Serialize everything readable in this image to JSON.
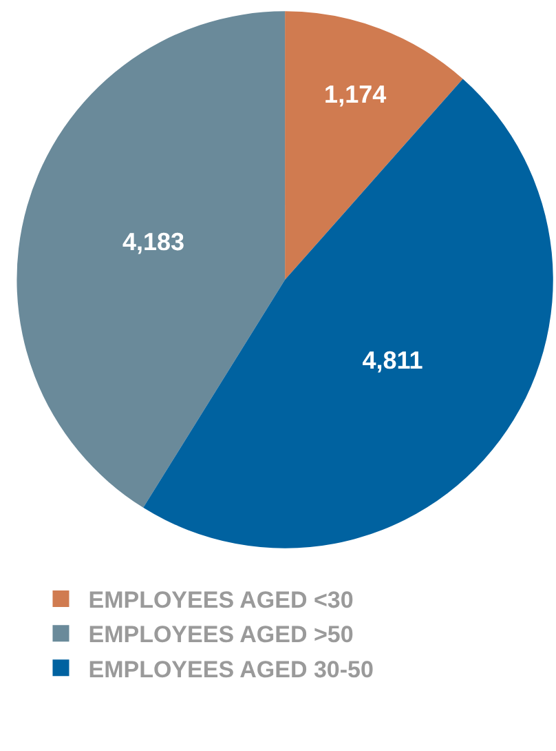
{
  "chart_data": {
    "type": "pie",
    "categories": [
      "EMPLOYEES AGED <30",
      "EMPLOYEES AGED >50",
      "EMPLOYEES AGED 30-50"
    ],
    "values": [
      1174,
      4183,
      4811
    ],
    "colors": [
      "#d07b50",
      "#6a8a9a",
      "#0062a0"
    ],
    "value_labels": [
      "1,174",
      "4,183",
      "4,811"
    ],
    "legend": "bottom"
  }
}
